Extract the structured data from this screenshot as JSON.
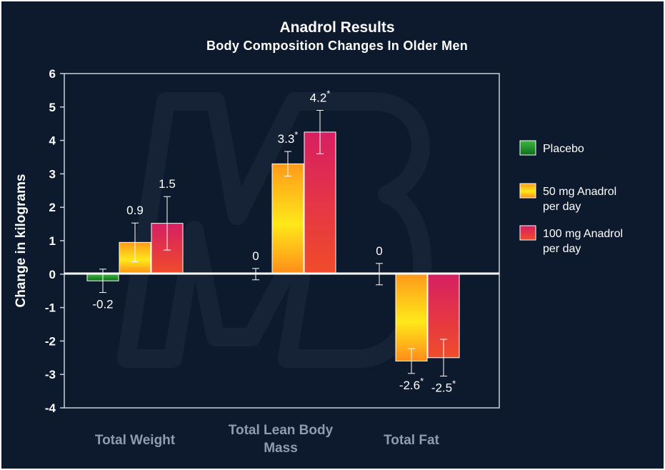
{
  "chart_data": {
    "type": "bar",
    "title": "Anadrol Results",
    "subtitle": "Body Composition Changes In Older Men",
    "ylabel": "Change in kilograms",
    "xlabel": "",
    "ylim": [
      -4,
      6
    ],
    "yticks": [
      6,
      5,
      4,
      3,
      2,
      1,
      0,
      -1,
      -2,
      -3,
      -4
    ],
    "categories": [
      {
        "lines": [
          "Total Weight"
        ]
      },
      {
        "lines": [
          "Total Lean Body",
          "Mass"
        ]
      },
      {
        "lines": [
          "Total Fat"
        ]
      }
    ],
    "series": [
      {
        "name_lines": [
          "Placebo"
        ],
        "colors": [
          "#3fb542",
          "#0d6e1a"
        ],
        "values": [
          -0.2,
          0,
          0
        ],
        "labels": [
          "-0.2",
          "0",
          "0"
        ],
        "errors": [
          0.35,
          0.17,
          0.32
        ],
        "sig": [
          false,
          false,
          false
        ]
      },
      {
        "name_lines": [
          "50 mg Anadrol",
          "per day"
        ],
        "colors": [
          "#ff9a1a",
          "#ffe81a"
        ],
        "values": [
          0.95,
          3.3,
          -2.6
        ],
        "labels": [
          "0.9",
          "3.3",
          "-2.6"
        ],
        "errors": [
          0.58,
          0.37,
          0.37
        ],
        "sig": [
          false,
          true,
          true
        ]
      },
      {
        "name_lines": [
          "100 mg Anadrol",
          "per day"
        ],
        "colors": [
          "#d71f62",
          "#f04c2a"
        ],
        "values": [
          1.52,
          4.25,
          -2.5
        ],
        "labels": [
          "1.5",
          "4.2",
          "-2.5"
        ],
        "errors": [
          0.8,
          0.65,
          0.55
        ],
        "sig": [
          false,
          true,
          true
        ]
      }
    ],
    "significance_marker": "*",
    "legend_position": "right",
    "grid": false,
    "watermark": "MB logo"
  }
}
